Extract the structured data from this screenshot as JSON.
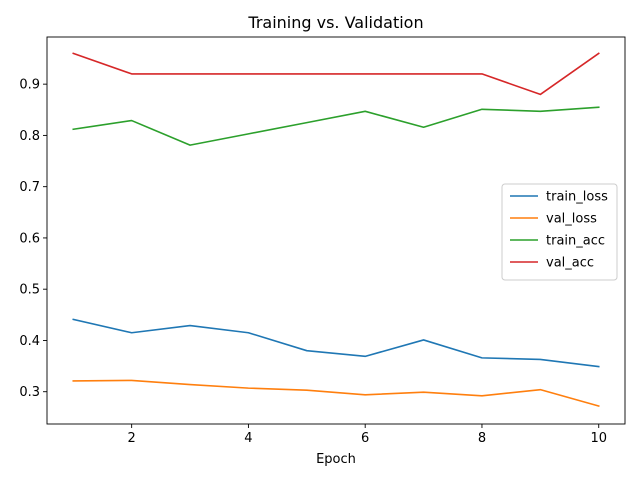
{
  "chart_data": {
    "type": "line",
    "title": "Training vs. Validation",
    "xlabel": "Epoch",
    "ylabel": "",
    "x": [
      1,
      2,
      3,
      4,
      5,
      6,
      7,
      8,
      9,
      10
    ],
    "xlim": [
      0.55,
      10.45
    ],
    "ylim": [
      0.237,
      0.992
    ],
    "xticks": [
      2,
      4,
      6,
      8,
      10
    ],
    "yticks": [
      0.3,
      0.4,
      0.5,
      0.6,
      0.7,
      0.8,
      0.9
    ],
    "grid": false,
    "legend_position": "right",
    "series": [
      {
        "name": "train_loss",
        "color": "#1f77b4",
        "values": [
          0.441,
          0.415,
          0.429,
          0.415,
          0.38,
          0.369,
          0.401,
          0.366,
          0.363,
          0.349
        ]
      },
      {
        "name": "val_loss",
        "color": "#ff7f0e",
        "values": [
          0.321,
          0.322,
          0.314,
          0.307,
          0.303,
          0.294,
          0.299,
          0.292,
          0.304,
          0.272
        ]
      },
      {
        "name": "train_acc",
        "color": "#2ca02c",
        "values": [
          0.812,
          0.829,
          0.781,
          0.803,
          0.825,
          0.847,
          0.816,
          0.851,
          0.847,
          0.855
        ]
      },
      {
        "name": "val_acc",
        "color": "#d62728",
        "values": [
          0.96,
          0.92,
          0.92,
          0.92,
          0.92,
          0.92,
          0.92,
          0.92,
          0.88,
          0.96
        ]
      }
    ]
  }
}
